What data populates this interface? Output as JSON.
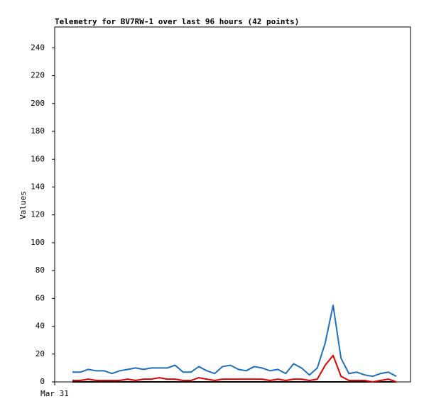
{
  "chart_data": {
    "type": "line",
    "title": "Telemetry for BV7RW-1 over last 96 hours (42 points)",
    "ylabel": "Values",
    "xtick_labels": [
      "Mar 31"
    ],
    "ylim": [
      0,
      255
    ],
    "yticks": [
      0,
      20,
      40,
      60,
      80,
      100,
      120,
      140,
      160,
      180,
      200,
      220,
      240
    ],
    "series": [
      {
        "color": "#1f6fbf",
        "values": [
          7,
          7,
          9,
          8,
          8,
          6,
          8,
          9,
          10,
          9,
          10,
          10,
          10,
          12,
          7,
          7,
          11,
          8,
          6,
          11,
          12,
          9,
          8,
          11,
          10,
          8,
          9,
          6,
          13,
          10,
          5,
          10,
          28,
          55,
          17,
          6,
          7,
          5,
          4,
          6,
          7,
          4
        ]
      },
      {
        "color": "#e00000",
        "values": [
          1,
          1,
          2,
          1,
          1,
          1,
          1,
          2,
          1,
          2,
          2,
          3,
          2,
          2,
          1,
          1,
          3,
          2,
          1,
          2,
          2,
          2,
          2,
          2,
          2,
          1,
          2,
          1,
          2,
          2,
          1,
          2,
          12,
          19,
          4,
          1,
          1,
          1,
          0,
          1,
          2,
          0
        ]
      },
      {
        "color": "#000000",
        "values": [
          0,
          0,
          0,
          0,
          0,
          0,
          0,
          0,
          0,
          0,
          0,
          0,
          0,
          0,
          0,
          0,
          0,
          0,
          0,
          0,
          0,
          0,
          0,
          0,
          0,
          0,
          0,
          0,
          0,
          0,
          0,
          0,
          0,
          0,
          0,
          0,
          0,
          0,
          0,
          0,
          0,
          0
        ]
      }
    ]
  }
}
